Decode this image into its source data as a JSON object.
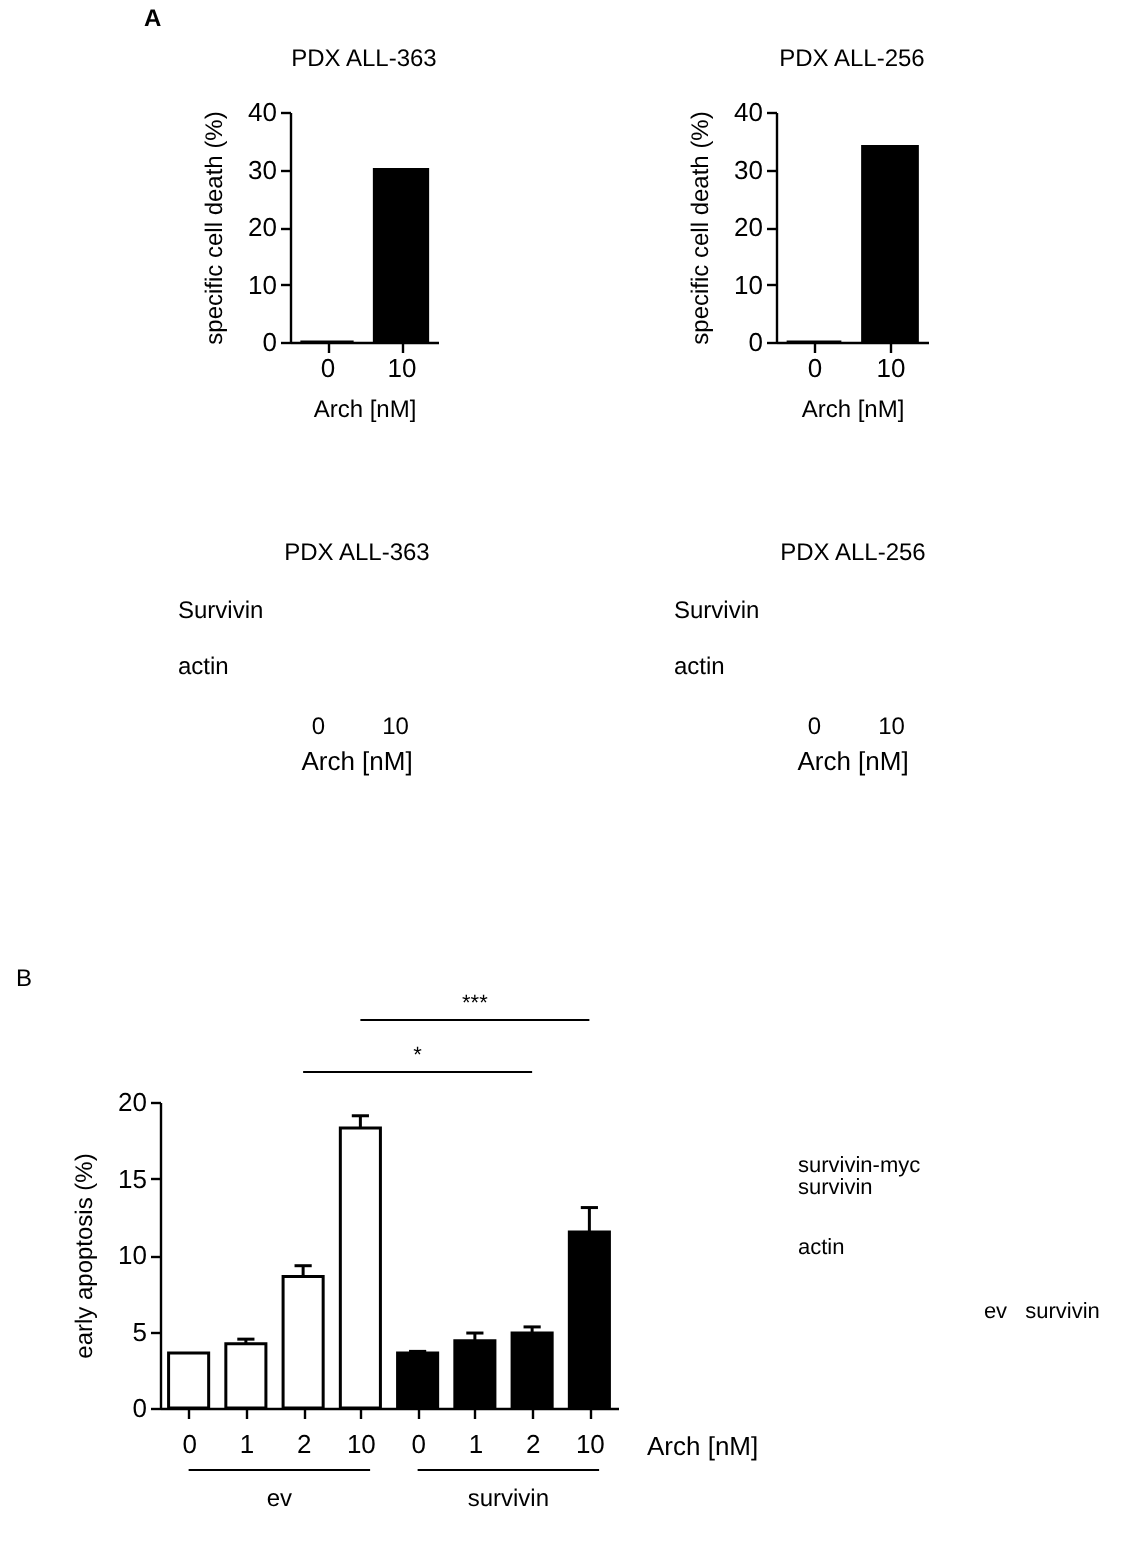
{
  "chart_data": [
    {
      "type": "bar",
      "title": "PDX ALL-363",
      "categories": [
        "0",
        "10"
      ],
      "values": [
        0,
        30
      ],
      "color": "#000000",
      "xlabel": "Arch [nM]",
      "ylabel": "specific cell death (%)",
      "ylim": [
        0,
        40
      ],
      "yticks": [
        0,
        10,
        20,
        30,
        40
      ],
      "annotations": [
        "A"
      ]
    },
    {
      "type": "bar",
      "title": "PDX ALL-256",
      "categories": [
        "0",
        "10"
      ],
      "values": [
        0,
        34
      ],
      "color": "#000000",
      "xlabel": "Arch [nM]",
      "ylabel": "specific cell death (%)",
      "ylim": [
        0,
        40
      ],
      "yticks": [
        0,
        10,
        20,
        30,
        40
      ]
    },
    {
      "type": "other",
      "title": "PDX ALL-363",
      "categories": [
        "0",
        "10"
      ],
      "xlabel": "Arch [nM]",
      "annotations": [
        "Survivin",
        "actin"
      ]
    },
    {
      "type": "other",
      "title": "PDX ALL-256",
      "categories": [
        "0",
        "10"
      ],
      "xlabel": "Arch [nM]",
      "annotations": [
        "Survivin",
        "actin"
      ]
    },
    {
      "type": "bar",
      "categories": [
        "0",
        "1",
        "2",
        "10",
        "0",
        "1",
        "2",
        "10"
      ],
      "series": [
        {
          "color": "#ffffff",
          "values": [
            3.6,
            4.2,
            8.6,
            18.3,
            null,
            null,
            null,
            null
          ],
          "errors": [
            null,
            [
              4.2,
              4.5
            ],
            [
              8.6,
              9.3
            ],
            [
              18.3,
              19.1
            ],
            null,
            null,
            null,
            null
          ]
        },
        {
          "color": "#000000",
          "values": [
            null,
            null,
            null,
            null,
            3.6,
            4.4,
            4.9,
            11.5
          ],
          "errors": [
            null,
            null,
            null,
            null,
            [
              3.6,
              3.7
            ],
            [
              4.4,
              4.9
            ],
            [
              4.9,
              5.3
            ],
            [
              11.5,
              13.1
            ]
          ]
        }
      ],
      "xlabel": "Arch [nM]",
      "ylabel": "early apoptosis (%)",
      "ylim": [
        0,
        20
      ],
      "yticks": [
        0,
        5,
        10,
        15,
        20
      ],
      "annotations": [
        "B",
        "***",
        "*",
        "ev",
        "survivin"
      ]
    },
    {
      "type": "other",
      "categories": [
        "ev",
        "survivin"
      ],
      "annotations": [
        "survivin-myc",
        "survivin",
        "actin"
      ]
    }
  ]
}
